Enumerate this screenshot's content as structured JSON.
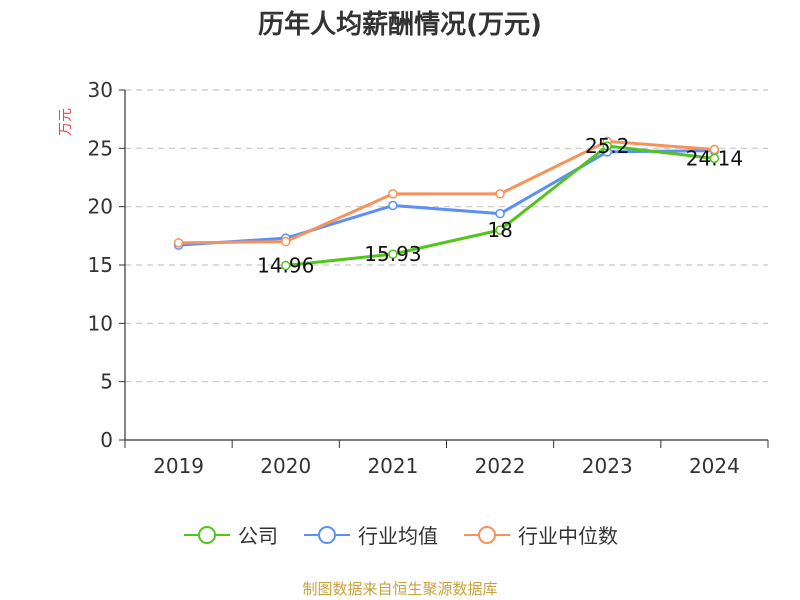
{
  "colors": {
    "company": "#52c41a",
    "industry_avg": "#5b8ff9",
    "industry_median": "#f6925b",
    "source": "#c9a23e",
    "ylabel": "#e8474f"
  },
  "chart_data": {
    "type": "line",
    "title": "历年人均薪酬情况(万元)",
    "ylabel": "万元",
    "xlabel": "",
    "categories": [
      "2019",
      "2020",
      "2021",
      "2022",
      "2023",
      "2024"
    ],
    "ylim": [
      0,
      30
    ],
    "yticks": [
      "0",
      "5",
      "10",
      "15",
      "20",
      "25",
      "30"
    ],
    "grid": true,
    "legend_position": "bottom",
    "series": [
      {
        "name": "公司",
        "key": "company",
        "values": [
          null,
          14.96,
          15.93,
          18,
          25.2,
          24.14
        ],
        "labels": [
          "",
          "14.96",
          "15.93",
          "18",
          "25.2",
          "24.14"
        ]
      },
      {
        "name": "行业均值",
        "key": "industry_avg",
        "values": [
          16.7,
          17.3,
          20.1,
          19.4,
          24.7,
          24.8
        ]
      },
      {
        "name": "行业中位数",
        "key": "industry_median",
        "values": [
          16.9,
          17.0,
          21.1,
          21.1,
          25.6,
          24.9
        ]
      }
    ]
  },
  "legend": [
    "公司",
    "行业均值",
    "行业中位数"
  ],
  "source_text": "制图数据来自恒生聚源数据库"
}
